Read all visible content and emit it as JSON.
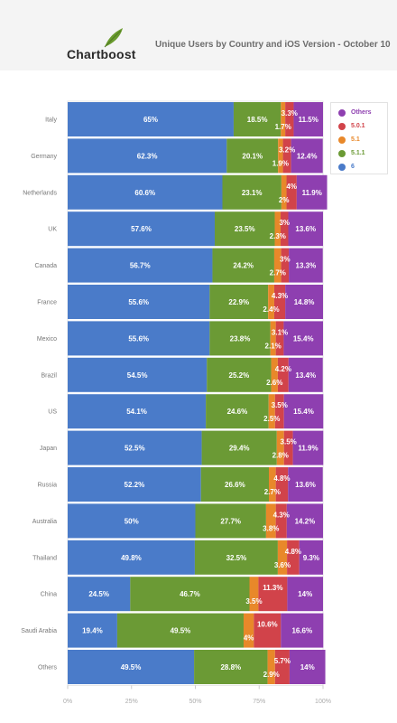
{
  "header": {
    "logo_text": "Chartboost",
    "title": "Unique Users by Country and iOS Version - October 10"
  },
  "colors": {
    "header_bg": "#f4f4f4",
    "logo_leaf": "#6a9b2f",
    "6": "#4a7bc9",
    "5.1.1": "#6b9a35",
    "5.1": "#e8882a",
    "5.0.1": "#d1434a",
    "Others": "#8e3fb0"
  },
  "legend": [
    {
      "name": "Others",
      "color": "#8e3fb0"
    },
    {
      "name": "5.0.1",
      "color": "#d1434a"
    },
    {
      "name": "5.1",
      "color": "#e8882a"
    },
    {
      "name": "5.1.1",
      "color": "#6b9a35"
    },
    {
      "name": "6",
      "color": "#4a7bc9"
    }
  ],
  "chart_data": {
    "type": "bar",
    "orientation": "horizontal",
    "stacked": true,
    "title": "Unique Users by Country and iOS Version - October 10",
    "xlim": [
      0,
      100
    ],
    "x_ticks": [
      "0%",
      "25%",
      "50%",
      "75%",
      "100%"
    ],
    "legend_position": "right",
    "categories": [
      "Italy",
      "Germany",
      "Netherlands",
      "UK",
      "Canada",
      "France",
      "Mexico",
      "Brazil",
      "US",
      "Japan",
      "Russia",
      "Australia",
      "Thailand",
      "China",
      "Saudi Arabia",
      "Others"
    ],
    "series": [
      {
        "name": "6",
        "values": [
          65,
          62.3,
          60.6,
          57.6,
          56.7,
          55.6,
          55.6,
          54.5,
          54.1,
          52.5,
          52.2,
          50,
          49.8,
          24.5,
          19.4,
          49.5
        ]
      },
      {
        "name": "5.1.1",
        "values": [
          18.5,
          20.1,
          23.1,
          23.5,
          24.2,
          22.9,
          23.8,
          25.2,
          24.6,
          29.4,
          26.6,
          27.7,
          32.5,
          46.7,
          49.5,
          28.8
        ]
      },
      {
        "name": "5.1",
        "values": [
          1.7,
          1.9,
          2,
          2.3,
          2.7,
          2.4,
          2.1,
          2.6,
          2.5,
          2.8,
          2.7,
          3.8,
          3.6,
          3.5,
          4,
          2.9
        ]
      },
      {
        "name": "5.0.1",
        "values": [
          3.3,
          3.2,
          4,
          3,
          3,
          4.3,
          3.1,
          4.2,
          3.5,
          3.5,
          4.8,
          4.3,
          4.8,
          11.3,
          10.6,
          5.7
        ]
      },
      {
        "name": "Others",
        "values": [
          11.5,
          12.4,
          11.9,
          13.6,
          13.3,
          14.8,
          15.4,
          13.4,
          15.4,
          11.9,
          13.6,
          14.2,
          9.3,
          14,
          16.6,
          14
        ]
      }
    ]
  }
}
